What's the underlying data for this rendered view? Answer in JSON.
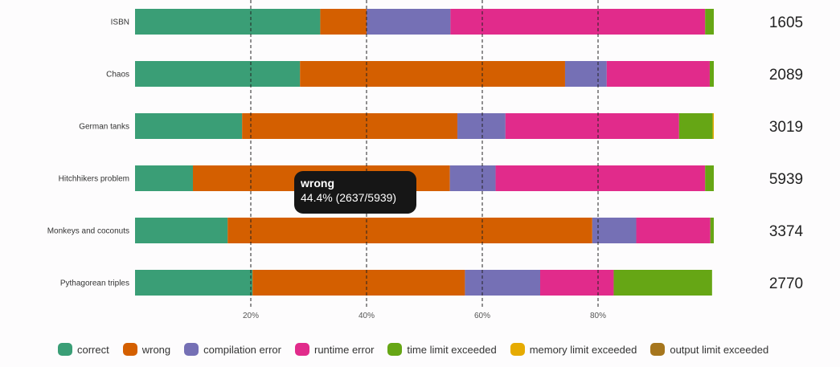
{
  "chart_data": {
    "type": "bar",
    "orientation": "horizontal",
    "stacked": true,
    "normalized": true,
    "categories": [
      "ISBN",
      "Chaos",
      "German tanks",
      "Hitchhikers problem",
      "Monkeys and coconuts",
      "Pythagorean triples"
    ],
    "totals": [
      "1605",
      "2089",
      "3019",
      "5939",
      "3374",
      "2770"
    ],
    "series": [
      {
        "name": "correct",
        "color": "#3a9e76",
        "values": [
          0.32,
          0.285,
          0.185,
          0.1,
          0.16,
          0.203
        ]
      },
      {
        "name": "wrong",
        "color": "#d45f00",
        "values": [
          0.08,
          0.458,
          0.372,
          0.444,
          0.63,
          0.367
        ]
      },
      {
        "name": "compilation error",
        "color": "#7570b5",
        "values": [
          0.145,
          0.072,
          0.083,
          0.079,
          0.076,
          0.13
        ]
      },
      {
        "name": "runtime error",
        "color": "#e12b8b",
        "values": [
          0.44,
          0.178,
          0.3,
          0.362,
          0.128,
          0.127
        ]
      },
      {
        "name": "time limit exceeded",
        "color": "#66a615",
        "values": [
          0.015,
          0.007,
          0.058,
          0.015,
          0.006,
          0.17
        ]
      },
      {
        "name": "memory limit exceeded",
        "color": "#e6ab02",
        "values": [
          0,
          0,
          0.002,
          0,
          0,
          0
        ]
      },
      {
        "name": "output limit exceeded",
        "color": "#a6761d",
        "values": [
          0,
          0,
          0,
          0,
          0,
          0
        ]
      }
    ],
    "xlim": [
      0,
      1
    ],
    "xticks": [
      {
        "value": 0.2,
        "label": "20%"
      },
      {
        "value": 0.4,
        "label": "40%"
      },
      {
        "value": 0.6,
        "label": "60%"
      },
      {
        "value": 0.8,
        "label": "80%"
      }
    ],
    "grid": "vertical dashed",
    "legend_position": "bottom"
  },
  "tooltip": {
    "title": "wrong",
    "value": "44.4% (2637/5939)"
  }
}
